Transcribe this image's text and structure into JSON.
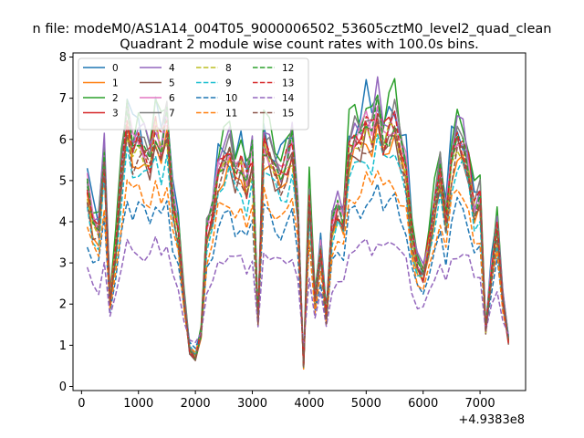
{
  "chart_data": {
    "type": "line",
    "suptitle": "n file: modeM0/AS1A14_004T05_9000006502_53605cztM0_level2_quad_clean",
    "title": "Quadrant 2 module wise count rates with 100.0s bins.",
    "xlabel": "",
    "ylabel": "",
    "x_offset_label": "+4.9383e8",
    "xlim": [
      -150,
      7800
    ],
    "ylim": [
      -0.1,
      8.1
    ],
    "xticks": [
      0,
      1000,
      2000,
      3000,
      4000,
      5000,
      6000,
      7000
    ],
    "yticks": [
      0,
      1,
      2,
      3,
      4,
      5,
      6,
      7,
      8
    ],
    "legend_position": "top-left",
    "x": [
      100,
      200,
      300,
      400,
      500,
      600,
      700,
      800,
      900,
      1000,
      1100,
      1200,
      1300,
      1400,
      1500,
      1600,
      1700,
      1800,
      1900,
      2000,
      2100,
      2200,
      2300,
      2400,
      2500,
      2600,
      2700,
      2800,
      2900,
      3000,
      3100,
      3200,
      3300,
      3400,
      3500,
      3600,
      3700,
      3800,
      3900,
      4000,
      4100,
      4200,
      4300,
      4400,
      4500,
      4600,
      4700,
      4800,
      4900,
      5000,
      5100,
      5200,
      5300,
      5400,
      5500,
      5600,
      5700,
      5800,
      5900,
      6000,
      6100,
      6200,
      6300,
      6400,
      6500,
      6600,
      6700,
      6800,
      6900,
      7000,
      7100,
      7200,
      7300,
      7400,
      7500
    ],
    "shape": [
      1.0,
      0.84,
      0.8,
      1.15,
      0.45,
      0.7,
      1.05,
      1.35,
      1.2,
      1.25,
      1.2,
      1.15,
      1.3,
      1.2,
      1.32,
      0.95,
      0.8,
      0.45,
      0.2,
      0.16,
      0.28,
      0.78,
      0.88,
      1.1,
      1.15,
      1.2,
      1.08,
      1.12,
      1.02,
      1.16,
      0.35,
      1.24,
      1.18,
      1.1,
      1.06,
      1.12,
      1.22,
      0.9,
      0.12,
      0.95,
      0.45,
      0.7,
      0.36,
      0.82,
      0.9,
      0.85,
      1.2,
      1.25,
      1.24,
      1.32,
      1.28,
      1.4,
      1.25,
      1.3,
      1.33,
      1.2,
      1.1,
      0.78,
      0.62,
      0.58,
      0.72,
      0.9,
      1.08,
      0.85,
      1.15,
      1.26,
      1.22,
      1.1,
      0.9,
      0.95,
      0.3,
      0.6,
      0.82,
      0.45,
      0.25
    ],
    "series": [
      {
        "name": "0",
        "color": "#1f77b4",
        "dash": "solid",
        "scale": 5.3,
        "offset": -0.2,
        "jitter": 0.5
      },
      {
        "name": "1",
        "color": "#ff7f0e",
        "dash": "solid",
        "scale": 4.6,
        "offset": -0.1,
        "jitter": 0.3
      },
      {
        "name": "2",
        "color": "#2ca02c",
        "dash": "solid",
        "scale": 5.3,
        "offset": -0.1,
        "jitter": 0.45
      },
      {
        "name": "3",
        "color": "#d62728",
        "dash": "solid",
        "scale": 4.9,
        "offset": -0.1,
        "jitter": 0.35
      },
      {
        "name": "4",
        "color": "#9467bd",
        "dash": "solid",
        "scale": 5.1,
        "offset": -0.1,
        "jitter": 0.35
      },
      {
        "name": "5",
        "color": "#8c564b",
        "dash": "solid",
        "scale": 4.7,
        "offset": -0.1,
        "jitter": 0.3
      },
      {
        "name": "6",
        "color": "#e377c2",
        "dash": "solid",
        "scale": 4.95,
        "offset": -0.1,
        "jitter": 0.35
      },
      {
        "name": "7",
        "color": "#7f7f7f",
        "dash": "solid",
        "scale": 5.05,
        "offset": -0.1,
        "jitter": 0.35
      },
      {
        "name": "8",
        "color": "#bcbd22",
        "dash": "dashed",
        "scale": 4.7,
        "offset": -0.05,
        "jitter": 0.3
      },
      {
        "name": "9",
        "color": "#17becf",
        "dash": "dashed",
        "scale": 4.2,
        "offset": 0.1,
        "jitter": 0.3
      },
      {
        "name": "10",
        "color": "#1f77b4",
        "dash": "dashed",
        "scale": 3.1,
        "offset": 0.45,
        "jitter": 0.2
      },
      {
        "name": "11",
        "color": "#ff7f0e",
        "dash": "dashed",
        "scale": 3.6,
        "offset": 0.25,
        "jitter": 0.25
      },
      {
        "name": "12",
        "color": "#2ca02c",
        "dash": "dashed",
        "scale": 4.9,
        "offset": -0.1,
        "jitter": 0.35
      },
      {
        "name": "13",
        "color": "#d62728",
        "dash": "dashed",
        "scale": 4.9,
        "offset": -0.1,
        "jitter": 0.35
      },
      {
        "name": "14",
        "color": "#9467bd",
        "dash": "dashed",
        "scale": 2.1,
        "offset": 0.7,
        "jitter": 0.2
      },
      {
        "name": "15",
        "color": "#8c564b",
        "dash": "dashed",
        "scale": 4.6,
        "offset": -0.05,
        "jitter": 0.3
      }
    ]
  }
}
